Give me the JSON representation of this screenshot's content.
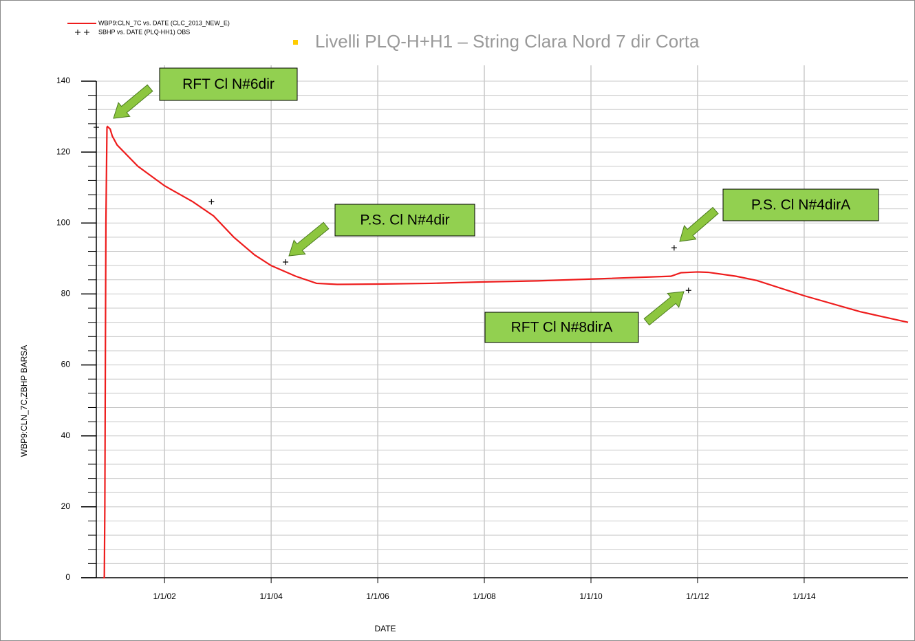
{
  "chart_data": {
    "type": "line",
    "title": "Livelli PLQ-H+H1 – String Clara Nord 7 dir Corta",
    "x_label": "DATE",
    "y_label": "WBP9:CLN_7C,ZBHP   BARSA",
    "xlim": [
      2000.72,
      2015.95
    ],
    "xticks": [
      {
        "value": 2002,
        "label": "1/1/02"
      },
      {
        "value": 2004,
        "label": "1/1/04"
      },
      {
        "value": 2006,
        "label": "1/1/06"
      },
      {
        "value": 2008,
        "label": "1/1/08"
      },
      {
        "value": 2010,
        "label": "1/1/10"
      },
      {
        "value": 2012,
        "label": "1/1/12"
      },
      {
        "value": 2014,
        "label": "1/1/14"
      }
    ],
    "ylim": [
      0,
      140
    ],
    "yticks": [
      0,
      20,
      40,
      60,
      80,
      100,
      120,
      140
    ],
    "yminorticks": [
      4,
      8,
      12,
      16,
      24,
      28,
      32,
      36,
      44,
      48,
      52,
      56,
      64,
      68,
      72,
      76,
      84,
      88,
      92,
      96,
      104,
      108,
      112,
      116,
      124,
      128,
      132,
      136
    ],
    "grid": true,
    "series": [
      {
        "name": "WBP9:CLN_7C  vs.  DATE (CLC_2013_NEW_E)",
        "color": "#ee1c1c",
        "marker": "line",
        "x": [
          2000.85,
          2000.87,
          2000.88,
          2000.89,
          2000.9,
          2000.92,
          2000.93,
          2000.98,
          2001.02,
          2001.11,
          2001.5,
          2002,
          2002.53,
          2002.92,
          2003.3,
          2003.69,
          2004,
          2004.46,
          2004.85,
          2005.24,
          2006,
          2007,
          2008,
          2009,
          2010,
          2011.5,
          2011.69,
          2012,
          2012.2,
          2012.72,
          2013.11,
          2014,
          2015.05,
          2015.95
        ],
        "values": [
          0,
          0,
          20,
          63,
          100,
          127,
          127.2,
          126.5,
          124.5,
          122,
          116,
          110.5,
          106,
          102,
          96,
          91,
          88,
          85,
          83,
          82.7,
          82.8,
          83,
          83.4,
          83.7,
          84.2,
          85,
          86,
          86.2,
          86.1,
          85,
          83.8,
          79.5,
          75,
          72
        ]
      },
      {
        "name": "SBHP  vs.  DATE (PLQ-HH1) OBS",
        "color": "#000000",
        "marker": "plus",
        "x": [
          2000.72,
          2002.88,
          2004.27,
          2011.56,
          2011.83
        ],
        "values": [
          127,
          106,
          89,
          93,
          81
        ]
      }
    ],
    "annotations": [
      "RFT Cl N#6dir",
      "P.S. Cl N#4dir",
      "P.S. Cl N#4dirA",
      "RFT Cl N#8dirA"
    ]
  }
}
